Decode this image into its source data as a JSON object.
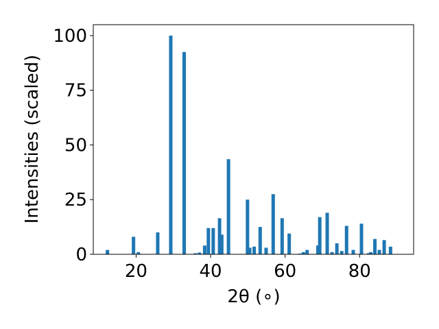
{
  "chart_data": {
    "type": "bar",
    "title": "",
    "xlabel": "2θ (∘)",
    "ylabel": "Intensities (scaled)",
    "xlim": [
      8.5,
      94.5
    ],
    "ylim": [
      0,
      105
    ],
    "grid": false,
    "bar_color": "#1f77b4",
    "x_ticks": [
      20,
      40,
      60,
      80
    ],
    "y_ticks": [
      0,
      25,
      50,
      75,
      100
    ],
    "x": [
      12.3,
      19.3,
      20.6,
      25.8,
      29.3,
      32.9,
      35.9,
      37.0,
      38.4,
      39.4,
      40.7,
      42.4,
      43.0,
      44.8,
      49.9,
      50.5,
      51.7,
      53.3,
      54.9,
      56.8,
      59.2,
      61.1,
      64.0,
      64.9,
      65.9,
      68.8,
      69.3,
      71.3,
      72.6,
      73.9,
      75.2,
      76.5,
      78.3,
      80.5,
      82.4,
      83.0,
      84.1,
      85.3,
      86.6,
      88.3
    ],
    "values": [
      2,
      8,
      1,
      10,
      100,
      92.5,
      0.5,
      0.8,
      4,
      12,
      12,
      16.5,
      9,
      43.5,
      25,
      3,
      3.5,
      12.5,
      3,
      27.5,
      16.5,
      9.5,
      0.3,
      1,
      2,
      4,
      17,
      19,
      1,
      5,
      1.5,
      13,
      2,
      14,
      0.5,
      1,
      7,
      2,
      6.5,
      3.5
    ]
  }
}
